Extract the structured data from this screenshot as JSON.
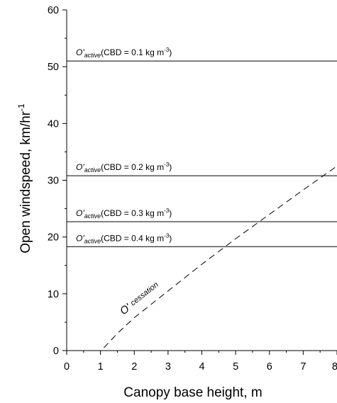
{
  "chart_data": {
    "type": "line",
    "xlabel": "Canopy base height, m",
    "ylabel": "Open windspeed, km/hr",
    "ylabel_sup": "-1",
    "xlim": [
      0,
      8
    ],
    "ylim": [
      0,
      60
    ],
    "x_ticks": [
      "0",
      "1",
      "2",
      "3",
      "4",
      "5",
      "6",
      "7",
      "8"
    ],
    "y_ticks": [
      "0",
      "10",
      "20",
      "30",
      "40",
      "50",
      "60"
    ],
    "grid": false,
    "series": [
      {
        "name": "O' cessation",
        "label_main": "O'",
        "label_sub": "cessation",
        "style": "dashed",
        "x": [
          1.1,
          1.5,
          2,
          3,
          4,
          5,
          6,
          7,
          8
        ],
        "y": [
          0.5,
          3,
          5.8,
          10.5,
          15.2,
          19.7,
          24,
          28.3,
          32.5
        ]
      }
    ],
    "reference_lines": [
      {
        "y": 51.0,
        "label_prime": "O'",
        "label_sub": "active",
        "label_text": "(CBD = 0.1 kg m",
        "label_sup": "-3",
        "label_close": ")"
      },
      {
        "y": 30.8,
        "label_prime": "O'",
        "label_sub": "active",
        "label_text": "(CBD = 0.2 kg m",
        "label_sup": "-3",
        "label_close": ")"
      },
      {
        "y": 22.7,
        "label_prime": "O'",
        "label_sub": "active",
        "label_text": "(CBD = 0.3 kg m",
        "label_sup": "-3",
        "label_close": ")"
      },
      {
        "y": 18.3,
        "label_prime": "O'",
        "label_sub": "active",
        "label_text": "(CBD = 0.4 kg m",
        "label_sup": "-3",
        "label_close": ")"
      }
    ]
  }
}
